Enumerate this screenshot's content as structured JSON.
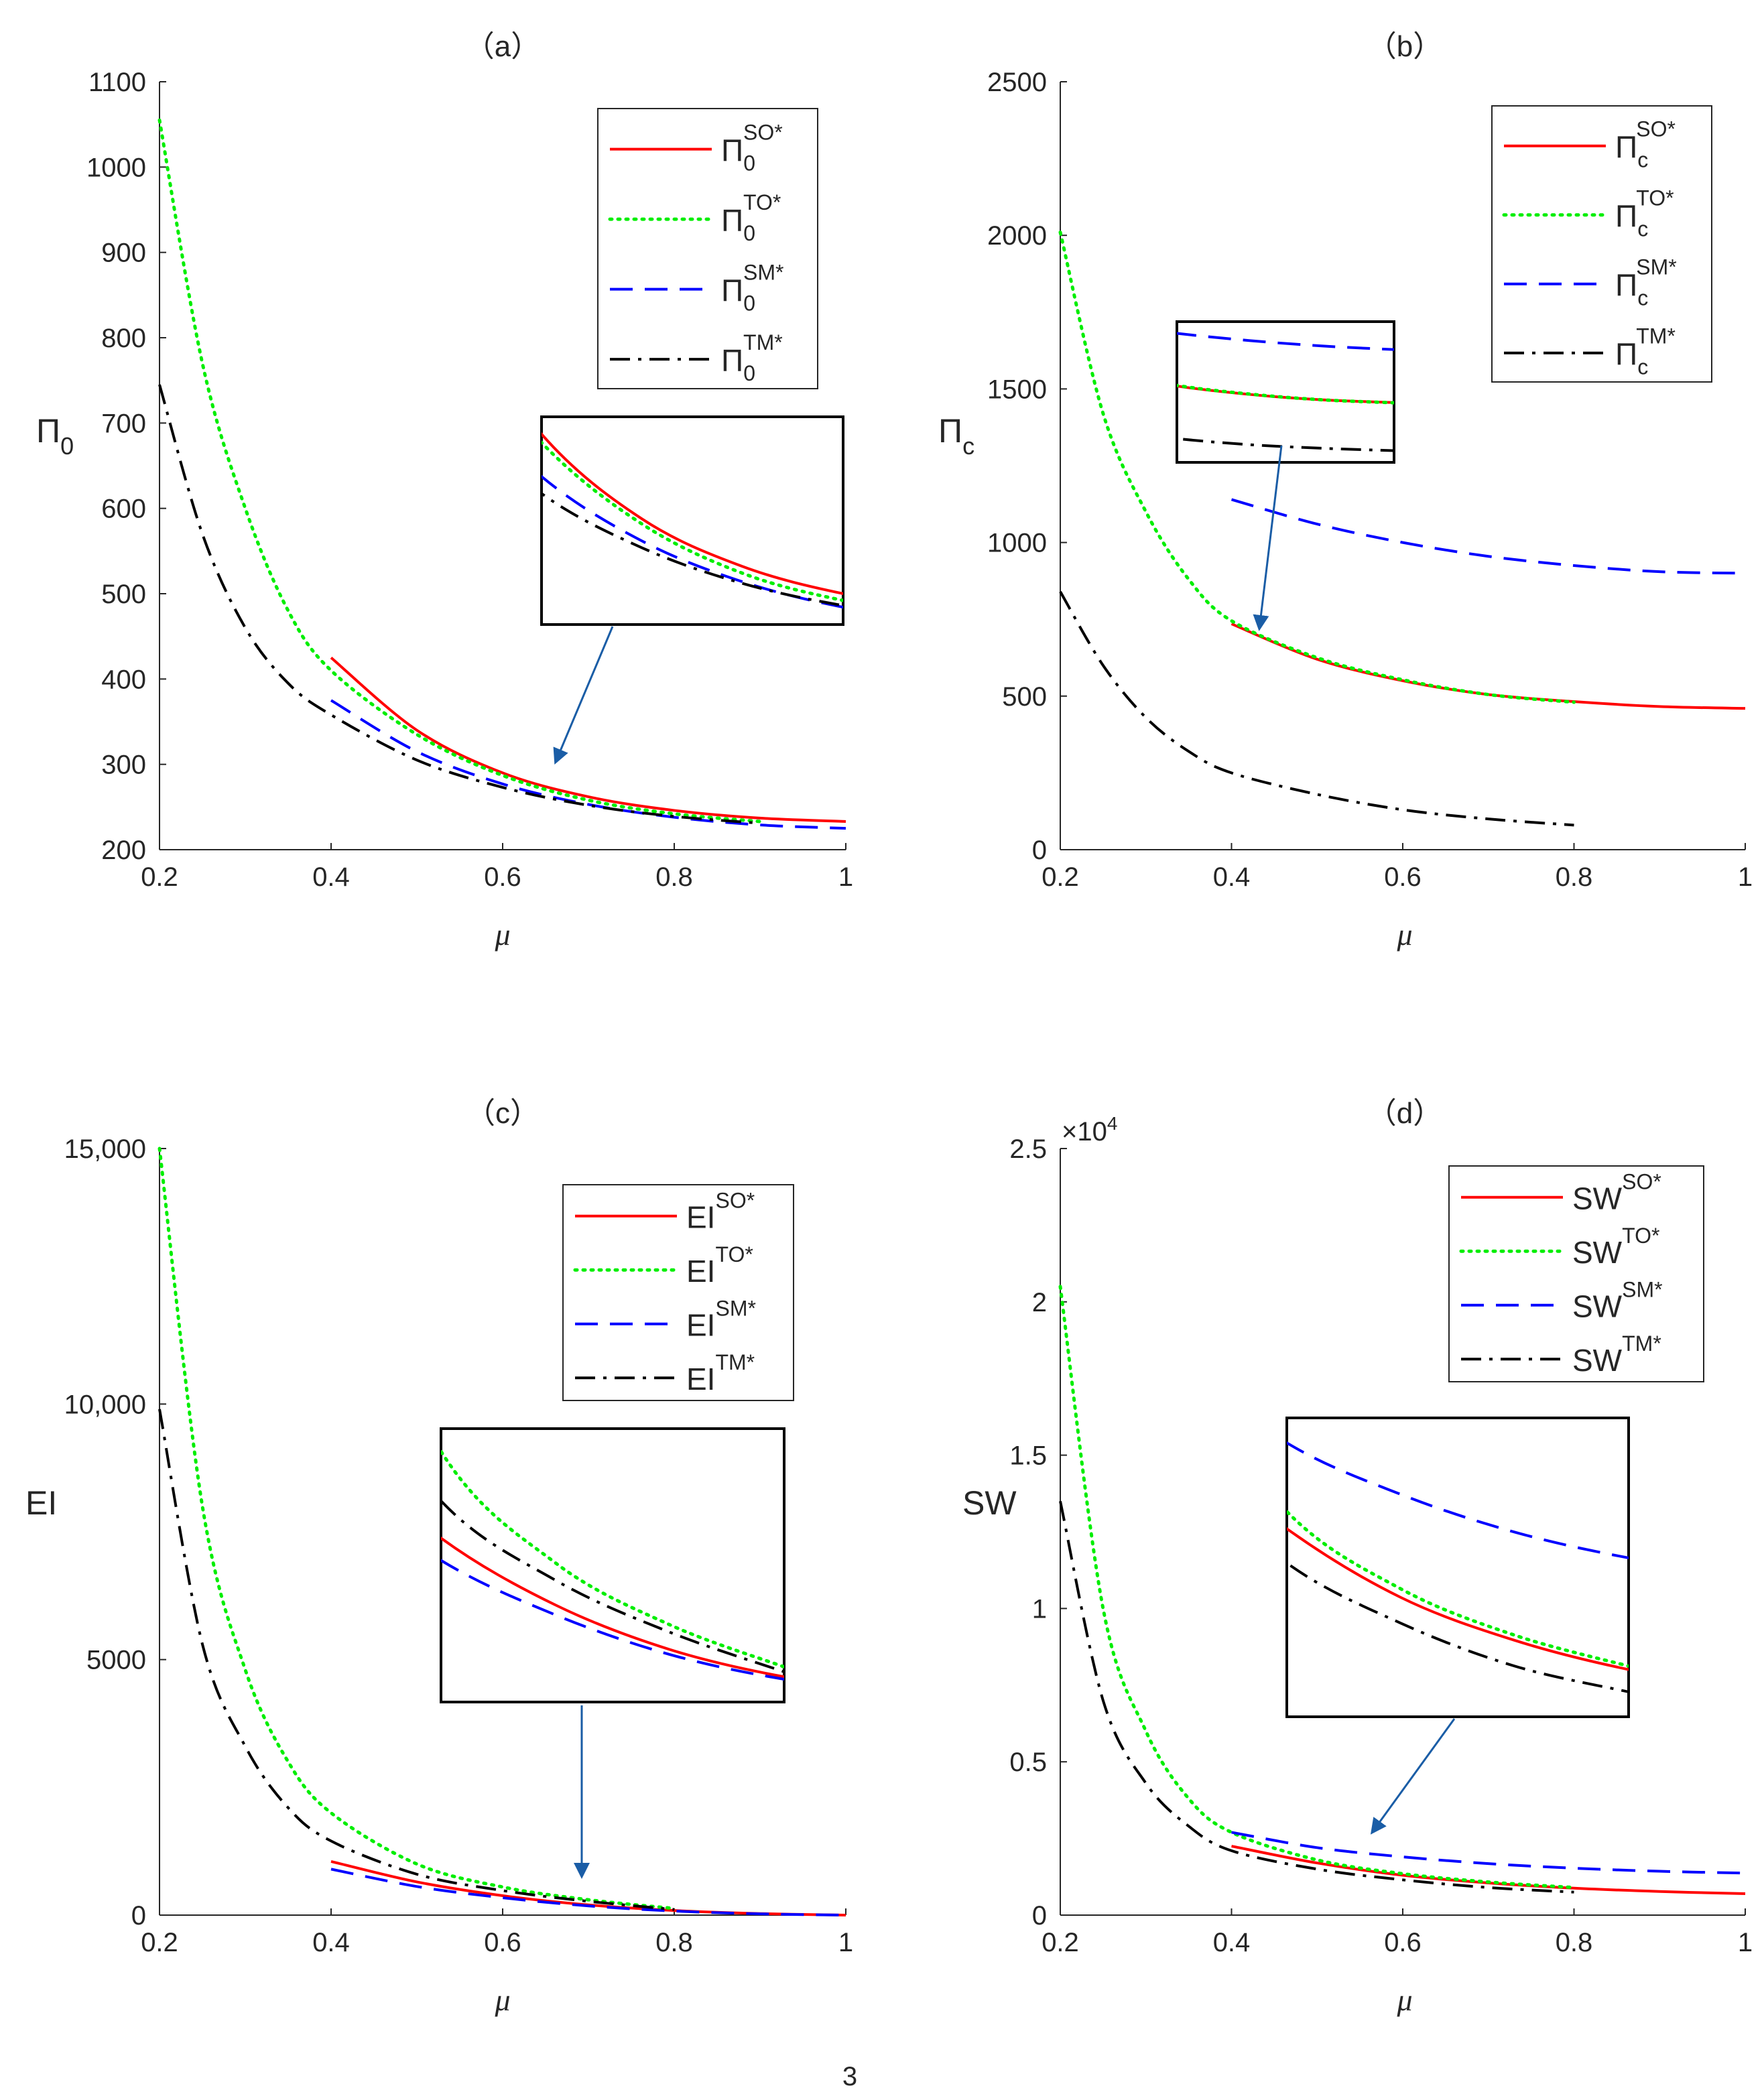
{
  "figure": {
    "page_marker": "3"
  },
  "chart_data": [
    {
      "type": "line",
      "panel": "a",
      "title": "（a）",
      "xlabel": "μ",
      "ylabel": "Π0",
      "ylabel_main": "Π",
      "ylabel_sub": "0",
      "xlim": [
        0.2,
        1
      ],
      "ylim": [
        200,
        1100
      ],
      "xticks": [
        0.2,
        0.4,
        0.6,
        0.8,
        1
      ],
      "xtick_labels": [
        "0.2",
        "0.4",
        "0.6",
        "0.8",
        "1"
      ],
      "yticks": [
        200,
        300,
        400,
        500,
        600,
        700,
        800,
        900,
        1000,
        1100
      ],
      "ytick_labels": [
        "200",
        "300",
        "400",
        "500",
        "600",
        "700",
        "800",
        "900",
        "1000",
        "1100"
      ],
      "legend_position": "top-right",
      "series": [
        {
          "name": "Π0^SO*",
          "base": "Π",
          "sub": "0",
          "sup": "SO*",
          "color": "#ff0000",
          "style": "solid",
          "x": [
            0.4,
            0.5,
            0.6,
            0.7,
            0.8,
            0.9,
            1.0
          ],
          "y": [
            425,
            340,
            290,
            262,
            246,
            237,
            233
          ]
        },
        {
          "name": "Π0^TO*",
          "base": "Π",
          "sub": "0",
          "sup": "TO*",
          "color": "#00ee00",
          "style": "dotted",
          "x": [
            0.2,
            0.25,
            0.3,
            0.35,
            0.4,
            0.5,
            0.6,
            0.7,
            0.8,
            0.9
          ],
          "y": [
            1055,
            770,
            600,
            480,
            410,
            335,
            287,
            258,
            242,
            233
          ]
        },
        {
          "name": "Π0^SM*",
          "base": "Π",
          "sub": "0",
          "sup": "SM*",
          "color": "#0000ff",
          "style": "dashed",
          "x": [
            0.4,
            0.5,
            0.6,
            0.7,
            0.8,
            0.9,
            1.0
          ],
          "y": [
            375,
            315,
            277,
            253,
            238,
            229,
            225
          ]
        },
        {
          "name": "Π0^TM*",
          "base": "Π",
          "sub": "0",
          "sup": "TM*",
          "color": "#000000",
          "style": "dashdot",
          "x": [
            0.2,
            0.25,
            0.3,
            0.35,
            0.4,
            0.5,
            0.6,
            0.7,
            0.8,
            0.9
          ],
          "y": [
            745,
            570,
            460,
            395,
            358,
            305,
            273,
            252,
            239,
            231
          ]
        }
      ]
    },
    {
      "type": "line",
      "panel": "b",
      "title": "（b）",
      "xlabel": "μ",
      "ylabel": "Πc",
      "ylabel_main": "Π",
      "ylabel_sub": "c",
      "xlim": [
        0.2,
        1
      ],
      "ylim": [
        0,
        2500
      ],
      "xticks": [
        0.2,
        0.4,
        0.6,
        0.8,
        1
      ],
      "xtick_labels": [
        "0.2",
        "0.4",
        "0.6",
        "0.8",
        "1"
      ],
      "yticks": [
        0,
        500,
        1000,
        1500,
        2000,
        2500
      ],
      "ytick_labels": [
        "0",
        "500",
        "1000",
        "1500",
        "2000",
        "2500"
      ],
      "legend_position": "top-right",
      "series": [
        {
          "name": "Πc^SO*",
          "base": "Π",
          "sub": "c",
          "sup": "SO*",
          "color": "#ff0000",
          "style": "solid",
          "x": [
            0.4,
            0.5,
            0.6,
            0.7,
            0.8,
            0.9,
            1.0
          ],
          "y": [
            735,
            620,
            550,
            505,
            482,
            466,
            460
          ]
        },
        {
          "name": "Πc^TO*",
          "base": "Π",
          "sub": "c",
          "sup": "TO*",
          "color": "#00ee00",
          "style": "dotted",
          "x": [
            0.2,
            0.25,
            0.3,
            0.35,
            0.4,
            0.5,
            0.6,
            0.7,
            0.8
          ],
          "y": [
            2010,
            1420,
            1100,
            880,
            745,
            625,
            553,
            505,
            480
          ]
        },
        {
          "name": "Πc^SM*",
          "base": "Π",
          "sub": "c",
          "sup": "SM*",
          "color": "#0000ff",
          "style": "dashed",
          "x": [
            0.4,
            0.5,
            0.6,
            0.7,
            0.8,
            0.9,
            1.0
          ],
          "y": [
            1140,
            1060,
            1000,
            955,
            925,
            905,
            900
          ]
        },
        {
          "name": "Πc^TM*",
          "base": "Π",
          "sub": "c",
          "sup": "TM*",
          "color": "#000000",
          "style": "dashdot",
          "x": [
            0.2,
            0.25,
            0.3,
            0.35,
            0.4,
            0.5,
            0.6,
            0.7,
            0.8
          ],
          "y": [
            840,
            600,
            430,
            320,
            250,
            180,
            130,
            100,
            80
          ]
        }
      ]
    },
    {
      "type": "line",
      "panel": "c",
      "title": "（c）",
      "xlabel": "μ",
      "ylabel": "EI",
      "ylabel_main": "EI",
      "ylabel_sub": "",
      "xlim": [
        0.2,
        1
      ],
      "ylim": [
        0,
        15000
      ],
      "xticks": [
        0.2,
        0.4,
        0.6,
        0.8,
        1
      ],
      "xtick_labels": [
        "0.2",
        "0.4",
        "0.6",
        "0.8",
        "1"
      ],
      "yticks": [
        0,
        5000,
        10000,
        15000
      ],
      "ytick_labels": [
        "0",
        "5000",
        "10,000",
        "15,000"
      ],
      "legend_position": "top-right",
      "series": [
        {
          "name": "EI^SO*",
          "base": "EI",
          "sub": "",
          "sup": "SO*",
          "color": "#ff0000",
          "style": "solid",
          "x": [
            0.4,
            0.5,
            0.6,
            0.7,
            0.8,
            0.9,
            1.0
          ],
          "y": [
            1050,
            650,
            380,
            200,
            90,
            30,
            0
          ]
        },
        {
          "name": "EI^TO*",
          "base": "EI",
          "sub": "",
          "sup": "TO*",
          "color": "#00ee00",
          "style": "dotted",
          "x": [
            0.2,
            0.25,
            0.3,
            0.35,
            0.4,
            0.5,
            0.6,
            0.7,
            0.8
          ],
          "y": [
            15000,
            8000,
            4800,
            3000,
            2000,
            1000,
            550,
            300,
            130
          ]
        },
        {
          "name": "EI^SM*",
          "base": "EI",
          "sub": "",
          "sup": "SM*",
          "color": "#0000ff",
          "style": "dashed",
          "x": [
            0.4,
            0.5,
            0.6,
            0.7,
            0.8,
            0.9,
            1.0
          ],
          "y": [
            900,
            560,
            340,
            180,
            80,
            25,
            0
          ]
        },
        {
          "name": "EI^TM*",
          "base": "EI",
          "sub": "",
          "sup": "TM*",
          "color": "#000000",
          "style": "dashdot",
          "x": [
            0.2,
            0.25,
            0.3,
            0.35,
            0.4,
            0.5,
            0.6,
            0.7,
            0.8
          ],
          "y": [
            9900,
            5300,
            3300,
            2100,
            1450,
            800,
            480,
            270,
            110
          ]
        }
      ]
    },
    {
      "type": "line",
      "panel": "d",
      "title": "（d）",
      "xlabel": "μ",
      "ylabel": "SW",
      "ylabel_main": "SW",
      "ylabel_sub": "",
      "exponent_label": "×10",
      "exponent_power": "4",
      "xlim": [
        0.2,
        1
      ],
      "ylim": [
        0,
        2.5
      ],
      "xticks": [
        0.2,
        0.4,
        0.6,
        0.8,
        1
      ],
      "xtick_labels": [
        "0.2",
        "0.4",
        "0.6",
        "0.8",
        "1"
      ],
      "yticks": [
        0,
        0.5,
        1,
        1.5,
        2,
        2.5
      ],
      "ytick_labels": [
        "0",
        "0.5",
        "1",
        "1.5",
        "2",
        "2.5"
      ],
      "legend_position": "top-right",
      "series": [
        {
          "name": "SW^SO*",
          "base": "SW",
          "sub": "",
          "sup": "SO*",
          "color": "#ff0000",
          "style": "solid",
          "x": [
            0.4,
            0.5,
            0.6,
            0.7,
            0.8,
            0.9,
            1.0
          ],
          "y": [
            0.225,
            0.17,
            0.13,
            0.105,
            0.088,
            0.077,
            0.07
          ]
        },
        {
          "name": "SW^TO*",
          "base": "SW",
          "sub": "",
          "sup": "TO*",
          "color": "#00ee00",
          "style": "dotted",
          "x": [
            0.2,
            0.25,
            0.3,
            0.35,
            0.4,
            0.5,
            0.6,
            0.7,
            0.8
          ],
          "y": [
            2.05,
            1.0,
            0.6,
            0.38,
            0.27,
            0.18,
            0.135,
            0.108,
            0.09
          ]
        },
        {
          "name": "SW^SM*",
          "base": "SW",
          "sub": "",
          "sup": "SM*",
          "color": "#0000ff",
          "style": "dashed",
          "x": [
            0.4,
            0.5,
            0.6,
            0.7,
            0.8,
            0.9,
            1.0
          ],
          "y": [
            0.27,
            0.22,
            0.19,
            0.168,
            0.153,
            0.143,
            0.137
          ]
        },
        {
          "name": "SW^TM*",
          "base": "SW",
          "sub": "",
          "sup": "TM*",
          "color": "#000000",
          "style": "dashdot",
          "x": [
            0.2,
            0.25,
            0.3,
            0.35,
            0.4,
            0.5,
            0.6,
            0.7,
            0.8
          ],
          "y": [
            1.35,
            0.7,
            0.43,
            0.29,
            0.21,
            0.15,
            0.115,
            0.09,
            0.075
          ]
        }
      ]
    }
  ]
}
